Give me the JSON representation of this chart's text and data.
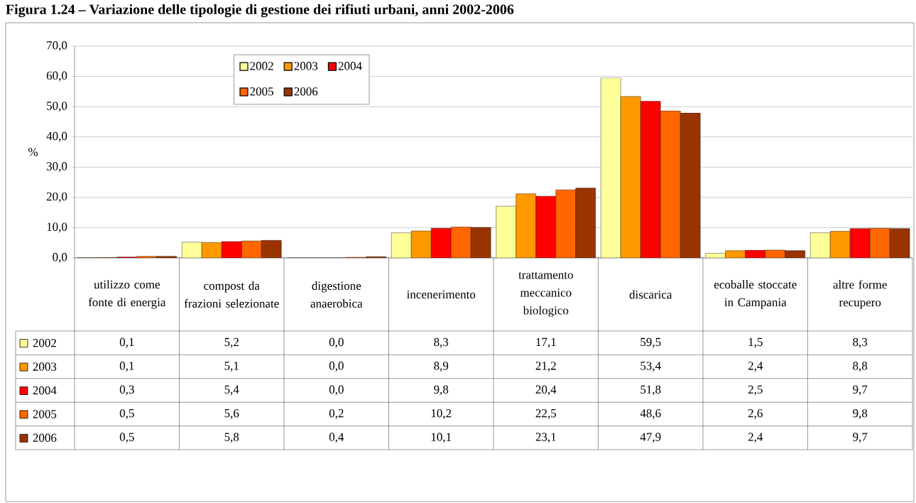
{
  "chart_data": {
    "type": "bar",
    "title": "Figura 1.24 – Variazione delle tipologie di gestione dei rifiuti urbani, anni 2002-2006",
    "ylabel": "%",
    "categories": [
      "utilizzo come fonte di energia",
      "compost da frazioni selezionate",
      "digestione anaerobica",
      "incenerimento",
      "trattamento meccanico biologico",
      "discarica",
      "ecoballe stoccate in Campania",
      "altre forme recupero"
    ],
    "series": [
      {
        "name": "2002",
        "color": "#ffff99",
        "values": [
          0.1,
          5.2,
          0.0,
          8.3,
          17.1,
          59.5,
          1.5,
          8.3
        ],
        "value_labels": [
          "0,1",
          "5,2",
          "0,0",
          "8,3",
          "17,1",
          "59,5",
          "1,5",
          "8,3"
        ]
      },
      {
        "name": "2003",
        "color": "#ff9900",
        "values": [
          0.1,
          5.1,
          0.0,
          8.9,
          21.2,
          53.4,
          2.4,
          8.8
        ],
        "value_labels": [
          "0,1",
          "5,1",
          "0,0",
          "8,9",
          "21,2",
          "53,4",
          "2,4",
          "8,8"
        ]
      },
      {
        "name": "2004",
        "color": "#ff0000",
        "values": [
          0.3,
          5.4,
          0.0,
          9.8,
          20.4,
          51.8,
          2.5,
          9.7
        ],
        "value_labels": [
          "0,3",
          "5,4",
          "0,0",
          "9,8",
          "20,4",
          "51,8",
          "2,5",
          "9,7"
        ]
      },
      {
        "name": "2005",
        "color": "#ff6600",
        "values": [
          0.5,
          5.6,
          0.2,
          10.2,
          22.5,
          48.6,
          2.6,
          9.8
        ],
        "value_labels": [
          "0,5",
          "5,6",
          "0,2",
          "10,2",
          "22,5",
          "48,6",
          "2,6",
          "9,8"
        ]
      },
      {
        "name": "2006",
        "color": "#993300",
        "values": [
          0.5,
          5.8,
          0.4,
          10.1,
          23.1,
          47.9,
          2.4,
          9.7
        ],
        "value_labels": [
          "0,5",
          "5,8",
          "0,4",
          "10,1",
          "23,1",
          "47,9",
          "2,4",
          "9,7"
        ]
      }
    ],
    "ylim": [
      0,
      70
    ],
    "yticks": [
      {
        "value": 0,
        "label": "0,0"
      },
      {
        "value": 10,
        "label": "10,0"
      },
      {
        "value": 20,
        "label": "20,0"
      },
      {
        "value": 30,
        "label": "30,0"
      },
      {
        "value": 40,
        "label": "40,0"
      },
      {
        "value": 50,
        "label": "50,0"
      },
      {
        "value": 60,
        "label": "60,0"
      },
      {
        "value": 70,
        "label": "70,0"
      }
    ],
    "grid": "y",
    "legend": "top left"
  }
}
